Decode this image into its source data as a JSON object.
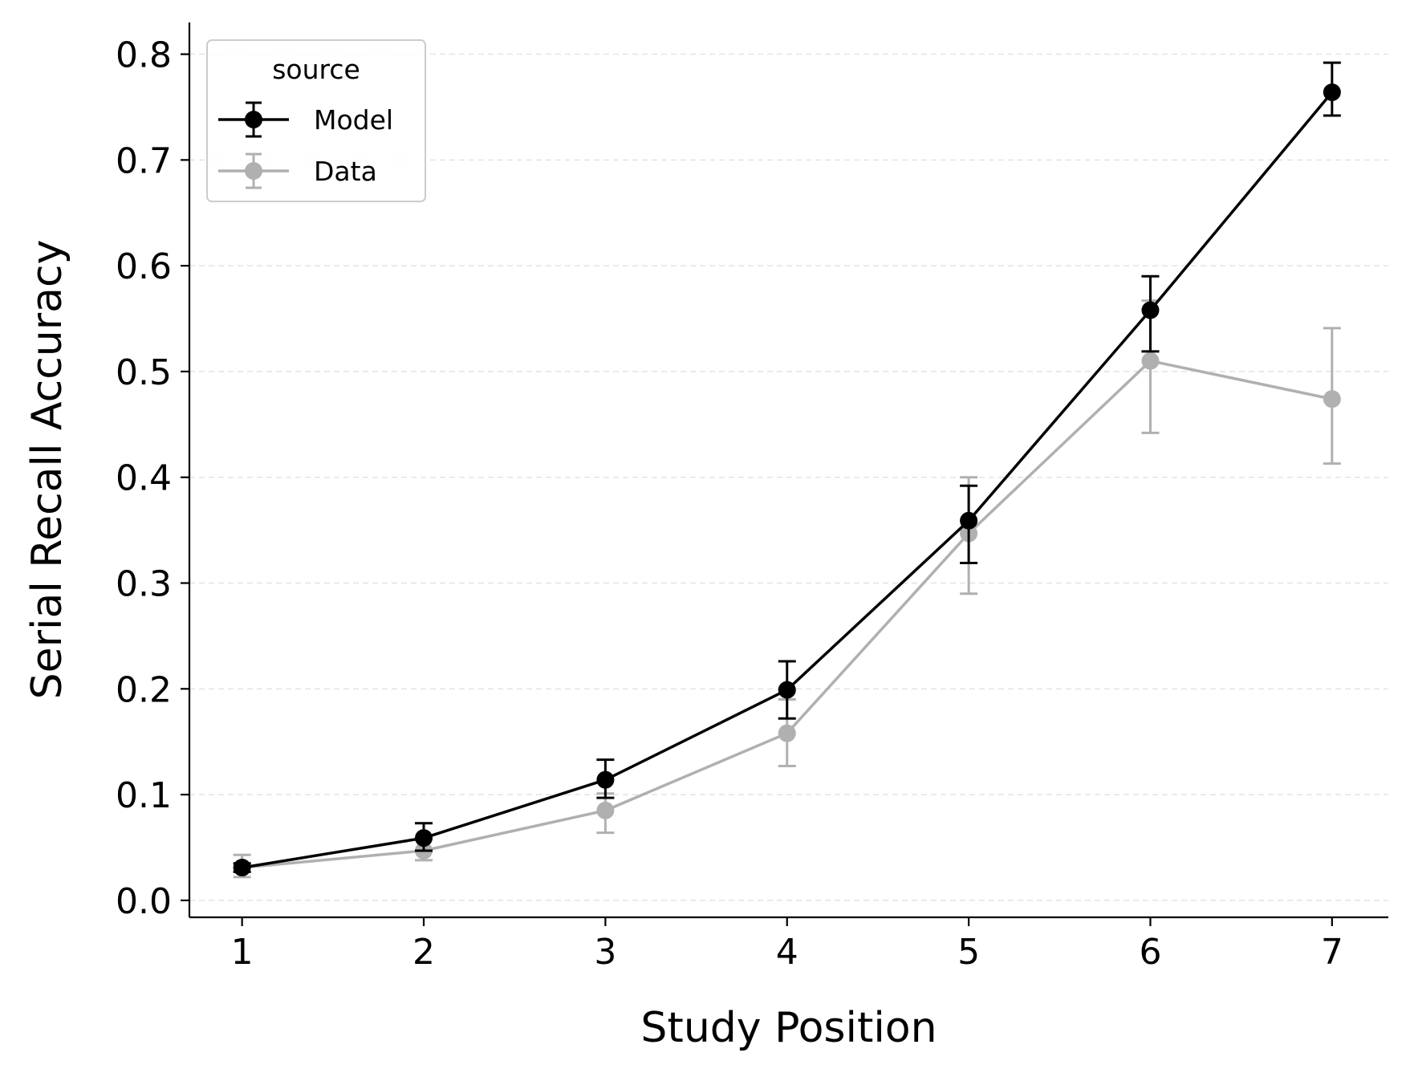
{
  "chart_data": {
    "type": "line",
    "title": "",
    "xlabel": "Study Position",
    "ylabel": "Serial Recall Accuracy",
    "x": [
      1,
      2,
      3,
      4,
      5,
      6,
      7
    ],
    "xlim": [
      0.71,
      7.31
    ],
    "ylim": [
      -0.016,
      0.83
    ],
    "x_ticks": [
      1,
      2,
      3,
      4,
      5,
      6,
      7
    ],
    "x_tick_labels": [
      "1",
      "2",
      "3",
      "4",
      "5",
      "6",
      "7"
    ],
    "y_ticks": [
      0.0,
      0.1,
      0.2,
      0.3,
      0.4,
      0.5,
      0.6,
      0.7,
      0.8
    ],
    "y_tick_labels": [
      "0.0",
      "0.1",
      "0.2",
      "0.3",
      "0.4",
      "0.5",
      "0.6",
      "0.7",
      "0.8"
    ],
    "grid": "horizontal dashed",
    "legend": {
      "title": "source",
      "placement": "top-left"
    },
    "series": [
      {
        "name": "Model",
        "color": "#000000",
        "values": [
          0.031,
          0.059,
          0.114,
          0.199,
          0.359,
          0.558,
          0.764
        ],
        "err_low": [
          0.027,
          0.047,
          0.097,
          0.172,
          0.319,
          0.519,
          0.742
        ],
        "err_high": [
          0.035,
          0.073,
          0.133,
          0.226,
          0.392,
          0.59,
          0.792
        ]
      },
      {
        "name": "Data",
        "color": "#b0b0b0",
        "values": [
          0.031,
          0.047,
          0.085,
          0.158,
          0.347,
          0.51,
          0.474
        ],
        "err_low": [
          0.022,
          0.038,
          0.064,
          0.127,
          0.29,
          0.442,
          0.413
        ],
        "err_high": [
          0.043,
          0.059,
          0.101,
          0.19,
          0.4,
          0.567,
          0.541
        ]
      }
    ]
  }
}
